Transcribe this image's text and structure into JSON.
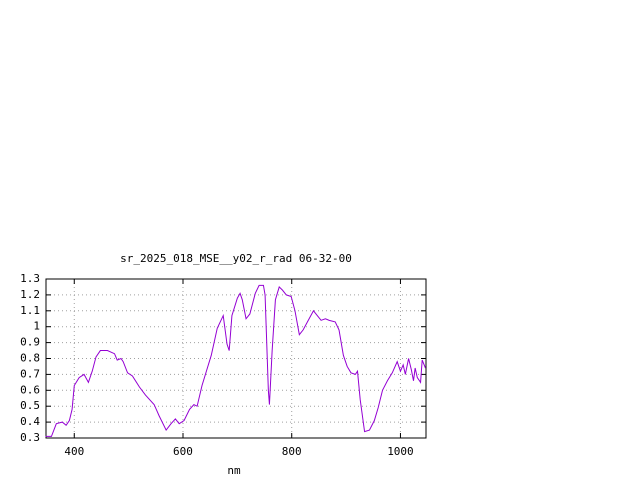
{
  "chart_data": {
    "type": "line",
    "title": "sr_2025_018_MSE__y02_r_rad 06-32-00",
    "x_label": "nm",
    "x": [
      347,
      358,
      367,
      378,
      385,
      391,
      396,
      400,
      409,
      418,
      426,
      433,
      440,
      448,
      461,
      474,
      479,
      486,
      490,
      498,
      507,
      520,
      531,
      547,
      556,
      569,
      578,
      586,
      593,
      602,
      612,
      620,
      626,
      635,
      643,
      652,
      663,
      674,
      681,
      685,
      690,
      700,
      705,
      709,
      716,
      723,
      733,
      740,
      748,
      751,
      757,
      759,
      764,
      770,
      777,
      783,
      790,
      799,
      806,
      814,
      821,
      832,
      840,
      847,
      854,
      862,
      869,
      880,
      887,
      895,
      902,
      909,
      917,
      921,
      926,
      934,
      943,
      952,
      959,
      967,
      976,
      985,
      994,
      1000,
      1005,
      1009,
      1015,
      1020,
      1024,
      1027,
      1031,
      1037,
      1040,
      1046
    ],
    "series": [
      {
        "color": "#9400d3",
        "values": [
          0.31,
          0.31,
          0.39,
          0.4,
          0.38,
          0.41,
          0.48,
          0.63,
          0.68,
          0.7,
          0.65,
          0.72,
          0.81,
          0.85,
          0.85,
          0.83,
          0.79,
          0.8,
          0.78,
          0.71,
          0.69,
          0.62,
          0.57,
          0.51,
          0.44,
          0.35,
          0.39,
          0.42,
          0.39,
          0.41,
          0.48,
          0.51,
          0.5,
          0.63,
          0.72,
          0.82,
          0.99,
          1.07,
          0.89,
          0.85,
          1.07,
          1.18,
          1.21,
          1.17,
          1.05,
          1.08,
          1.21,
          1.26,
          1.26,
          1.2,
          0.6,
          0.51,
          0.85,
          1.17,
          1.25,
          1.23,
          1.2,
          1.19,
          1.1,
          0.95,
          0.98,
          1.05,
          1.1,
          1.07,
          1.04,
          1.05,
          1.04,
          1.03,
          0.98,
          0.82,
          0.75,
          0.71,
          0.7,
          0.72,
          0.54,
          0.34,
          0.35,
          0.41,
          0.49,
          0.6,
          0.66,
          0.71,
          0.78,
          0.72,
          0.76,
          0.7,
          0.8,
          0.73,
          0.66,
          0.74,
          0.68,
          0.65,
          0.79,
          0.74
        ]
      }
    ],
    "xlim": [
      348,
      1047
    ],
    "xticks": [
      400,
      600,
      800,
      1000
    ],
    "ylim": [
      0.3,
      1.3
    ],
    "yticks": [
      0.3,
      0.4,
      0.5,
      0.6,
      0.7,
      0.8,
      0.9,
      1,
      1.1,
      1.2,
      1.3
    ],
    "grid": true
  }
}
